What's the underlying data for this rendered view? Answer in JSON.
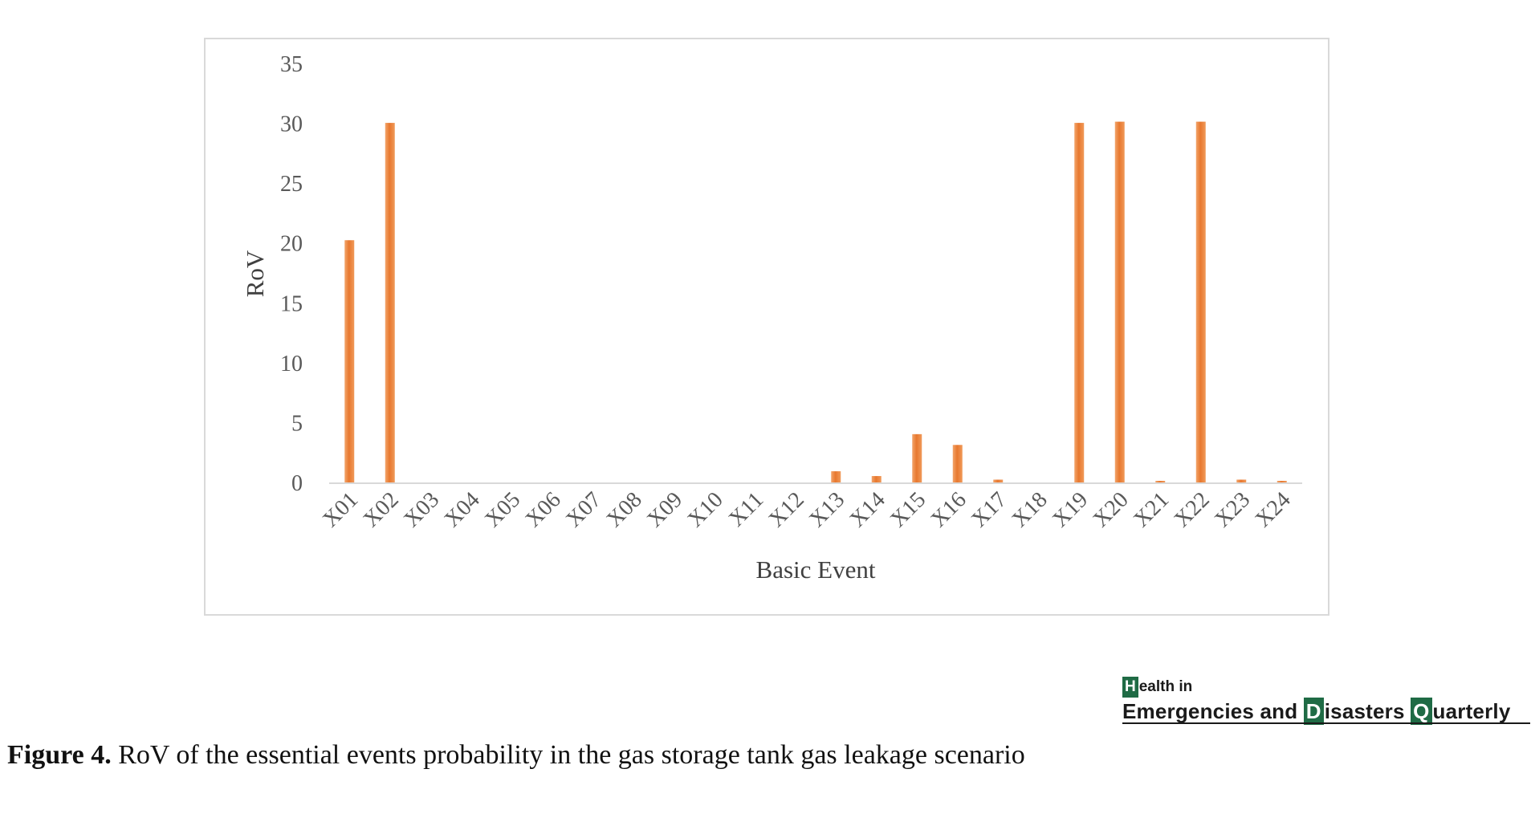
{
  "chart_data": {
    "type": "bar",
    "categories": [
      "X01",
      "X02",
      "X03",
      "X04",
      "X05",
      "X06",
      "X07",
      "X08",
      "X09",
      "X10",
      "X11",
      "X12",
      "X13",
      "X14",
      "X15",
      "X16",
      "X17",
      "X18",
      "X19",
      "X20",
      "X21",
      "X22",
      "X23",
      "X24"
    ],
    "values": [
      20.3,
      30.1,
      0,
      0,
      0,
      0,
      0,
      0,
      0,
      0,
      0,
      0,
      1.0,
      0.6,
      4.1,
      3.2,
      0.3,
      0,
      30.1,
      30.2,
      0.2,
      30.2,
      0.3,
      0.2
    ],
    "xlabel": "Basic Event",
    "ylabel": "RoV",
    "ylim": [
      0,
      35
    ],
    "yticks": [
      0,
      5,
      10,
      15,
      20,
      25,
      30,
      35
    ],
    "grid": false,
    "bar_color": "#e8782f"
  },
  "logo": {
    "line1_initial": "H",
    "line1_rest": "ealth in",
    "line2_word1": "Emergencies and",
    "line2_initial2": "D",
    "line2_word2": "isasters",
    "line2_initial3": "Q",
    "line2_word3": "uarterly"
  },
  "caption": {
    "label": "Figure 4.",
    "text": " RoV of the essential events probability in the gas storage tank gas leakage scenario"
  }
}
